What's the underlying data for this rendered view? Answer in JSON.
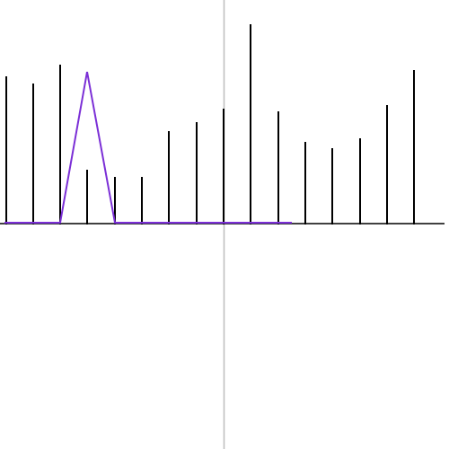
{
  "chart_data": {
    "type": "stem",
    "xlim": [
      -250,
      250
    ],
    "ylim": [
      -250,
      250
    ],
    "series": [
      {
        "color": "#000000",
        "x": [
          -243,
          -213,
          -183,
          -153,
          -122,
          -92,
          -62,
          -31,
          -1,
          29,
          60,
          90,
          120,
          151,
          181,
          211
        ],
        "values": [
          165,
          157,
          178,
          61,
          53,
          53,
          104,
          114,
          129,
          223,
          126,
          92,
          85,
          96,
          133,
          172
        ]
      },
      {
        "color": "#7b2fd6",
        "x": [
          -245,
          -183,
          -153,
          -122,
          75
        ],
        "values": [
          2,
          2,
          170,
          2,
          2
        ]
      }
    ]
  }
}
